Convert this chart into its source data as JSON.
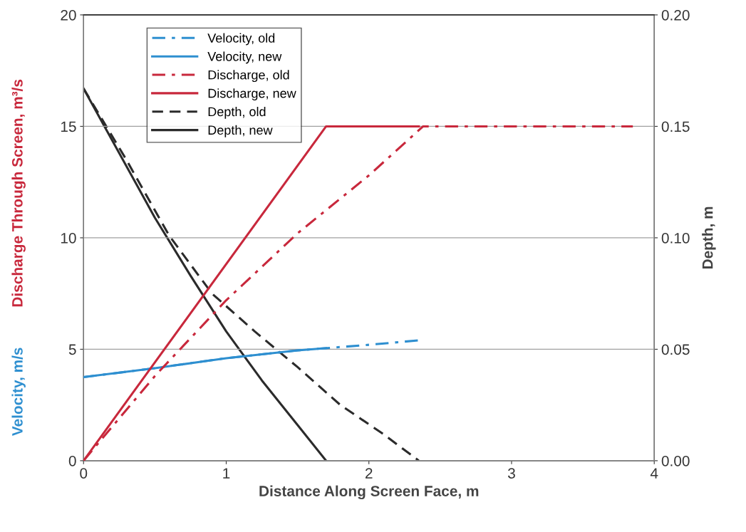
{
  "chart_data": {
    "type": "line",
    "xlabel": "Distance Along Screen Face, m",
    "ylabel": [
      "Velocity, m/s",
      "Discharge Through Screen, m³/s"
    ],
    "y2label": "Depth, m",
    "xlim": [
      0,
      4
    ],
    "xticks": [
      0,
      1,
      2,
      3,
      4
    ],
    "ylim": [
      0,
      20
    ],
    "yticks": [
      0,
      5,
      10,
      15,
      20
    ],
    "y2lim": [
      0,
      0.2
    ],
    "y2ticks": [
      {
        "value": 0,
        "label": "0.00"
      },
      {
        "value": 0.05,
        "label": "0.05"
      },
      {
        "value": 0.1,
        "label": "0.10"
      },
      {
        "value": 0.15,
        "label": "0.15"
      },
      {
        "value": 0.2,
        "label": "0.20"
      }
    ],
    "grid": "y",
    "legend": "top left",
    "series": [
      {
        "name": "Velocity, old",
        "color": "#2e8fd0",
        "line_style": "dashdot",
        "x": [
          0,
          0.5,
          1.0,
          1.5,
          2.0,
          2.35
        ],
        "values": [
          3.75,
          4.15,
          4.6,
          4.95,
          5.2,
          5.4
        ]
      },
      {
        "name": "Velocity, new",
        "color": "#2e8fd0",
        "line_style": "solid",
        "x": [
          0,
          0.5,
          1.0,
          1.5,
          1.7
        ],
        "values": [
          3.75,
          4.15,
          4.6,
          4.95,
          5.05
        ]
      },
      {
        "name": "Discharge, old",
        "color": "#c8283c",
        "line_style": "dashdot",
        "x": [
          0,
          0.5,
          1.0,
          1.5,
          2.0,
          2.38,
          3.85
        ],
        "values": [
          0,
          3.8,
          7.2,
          10.2,
          12.8,
          15,
          15
        ]
      },
      {
        "name": "Discharge, new",
        "color": "#c8283c",
        "line_style": "solid",
        "x": [
          0,
          1.7,
          2.35
        ],
        "values": [
          0,
          15,
          15
        ]
      },
      {
        "name": "Depth, old",
        "color": "#2b2b2b",
        "line_style": "dashed",
        "axis": "y2",
        "x": [
          0,
          0.3,
          0.6,
          0.9,
          1.2,
          1.5,
          1.8,
          2.1,
          2.35
        ],
        "values": [
          0.167,
          0.135,
          0.101,
          0.075,
          0.058,
          0.042,
          0.025,
          0.012,
          0
        ]
      },
      {
        "name": "Depth, new",
        "color": "#2b2b2b",
        "line_style": "solid",
        "axis": "y2",
        "x": [
          0,
          0.25,
          0.5,
          0.75,
          1.0,
          1.25,
          1.5,
          1.7
        ],
        "values": [
          0.167,
          0.138,
          0.109,
          0.083,
          0.058,
          0.036,
          0.016,
          0
        ]
      }
    ]
  }
}
